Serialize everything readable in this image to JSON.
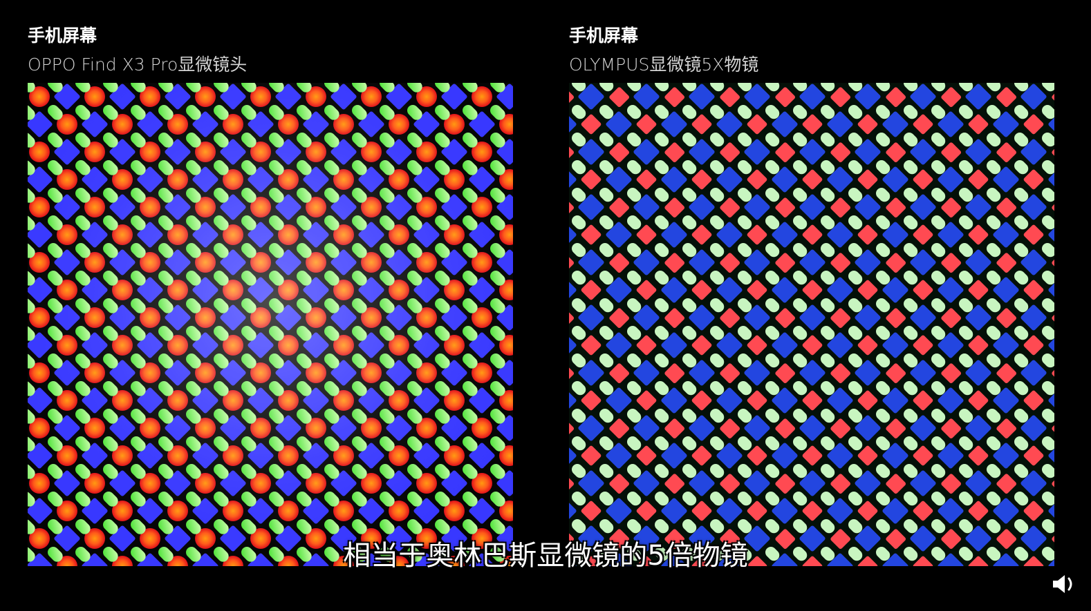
{
  "left": {
    "title": "手机屏幕",
    "subtitle": "OPPO Find X3 Pro显微镜头"
  },
  "right": {
    "title": "手机屏幕",
    "subtitle": "OLYMPUS显微镜5X物镜"
  },
  "caption": "相当于奥林巴斯显微镜的5倍物镜",
  "icons": {
    "volume": "volume-icon"
  }
}
